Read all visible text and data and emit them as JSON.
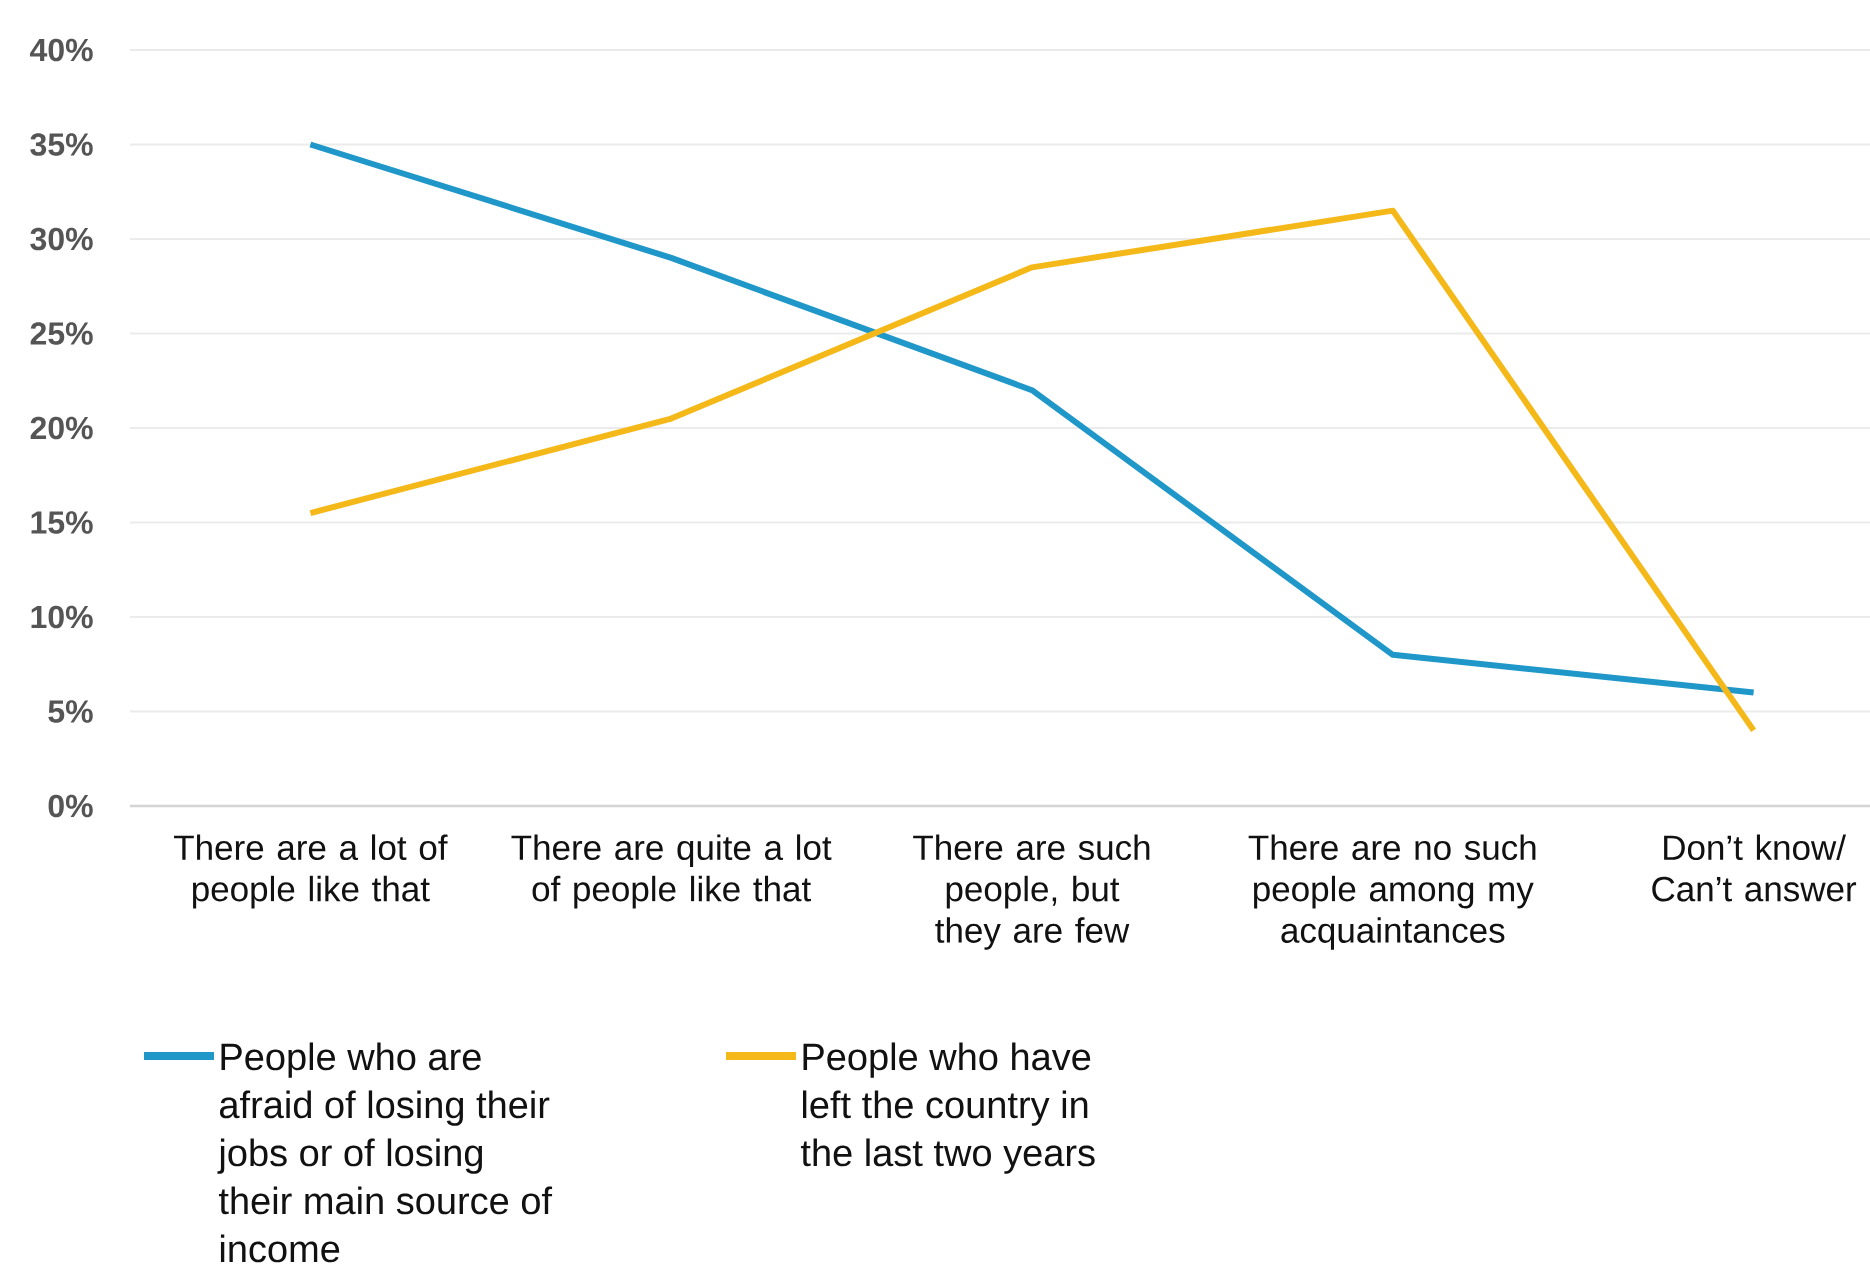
{
  "chart_data": {
    "type": "line",
    "categories": [
      "There are a lot of people like that",
      "There are quite a lot of people like that",
      "There are such people, but they are few",
      "There are no such people among my acquaintances",
      "Don’t know/ Can’t answer"
    ],
    "series": [
      {
        "name": "People who are afraid of losing their jobs or of losing their main source of income",
        "color": "#1f97c8",
        "values": [
          35,
          29,
          22,
          8,
          6
        ]
      },
      {
        "name": "People who have left the country in the last two years",
        "color": "#f4b818",
        "values": [
          15.5,
          20.5,
          28.5,
          31.5,
          4
        ]
      }
    ],
    "ylim": [
      0,
      40
    ],
    "yticks": [
      {
        "value": 0,
        "label": "0%"
      },
      {
        "value": 5,
        "label": "5%"
      },
      {
        "value": 10,
        "label": "10%"
      },
      {
        "value": 15,
        "label": "15%"
      },
      {
        "value": 20,
        "label": "20%"
      },
      {
        "value": 25,
        "label": "25%"
      },
      {
        "value": 30,
        "label": "30%"
      },
      {
        "value": 35,
        "label": "35%"
      },
      {
        "value": 40,
        "label": "40%"
      }
    ],
    "grid": "y",
    "legend": "bottom",
    "line_style": "solid"
  }
}
